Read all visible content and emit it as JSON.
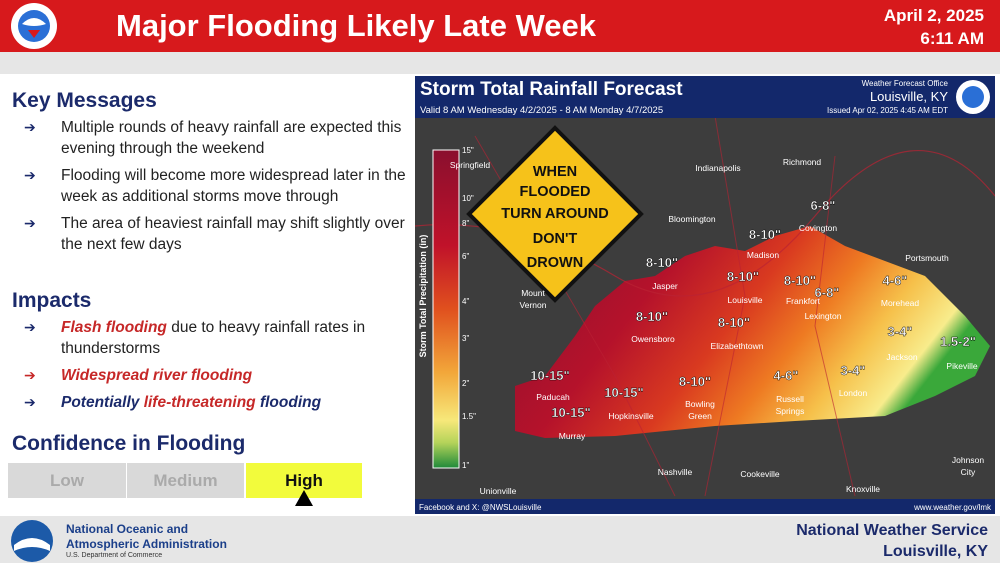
{
  "header": {
    "title": "Major Flooding Likely Late Week",
    "date": "April 2, 2025",
    "time": "6:11 AM"
  },
  "key_messages": {
    "heading": "Key Messages",
    "items": [
      "Multiple rounds of heavy rainfall are expected this evening through the weekend",
      "Flooding will become more widespread later in the week as additional storms move through",
      "The area of heaviest rainfall may shift slightly over the next few days"
    ]
  },
  "impacts": {
    "heading": "Impacts",
    "items": [
      [
        "Flash flooding",
        " due to heavy rainfall rates in thunderstorms"
      ],
      [
        "Widespread river flooding"
      ],
      [
        "Potentially ",
        "life-threatening",
        " flooding"
      ]
    ]
  },
  "confidence": {
    "heading": "Confidence in Flooding",
    "levels": [
      "Low",
      "Medium",
      "High"
    ],
    "selected": "High"
  },
  "map": {
    "title": "Storm Total Rainfall Forecast",
    "valid": "Valid 8 AM Wednesday 4/2/2025 - 8 AM Monday 4/7/2025",
    "office": "Weather Forecast Office",
    "office_name": "Louisville, KY",
    "issued": "Issued Apr 02, 2025 4:45 AM EDT",
    "legend_title": "Storm Total Precipitation (in)",
    "legend_ticks": [
      "15\"",
      "10\"",
      "8\"",
      "6\"",
      "4\"",
      "3\"",
      "2\"",
      "1.5\"",
      "1\""
    ],
    "sign": [
      "WHEN",
      "FLOODED",
      "TURN AROUND",
      "DON'T",
      "DROWN"
    ],
    "cities": [
      "Springfield",
      "Indianapolis",
      "Richmond",
      "Bloomington",
      "Covington",
      "Madison",
      "Jasper",
      "Louisville",
      "Frankfort",
      "Portsmouth",
      "Morehead",
      "Lexington",
      "Mount",
      "Vernon",
      "Owensboro",
      "Elizabethtown",
      "Jackson",
      "Pikeville",
      "Paducah",
      "Hopkinsville",
      "Bowling",
      "Green",
      "Russell",
      "Springs",
      "London",
      "Murray",
      "Nashville",
      "Cookeville",
      "Knoxville",
      "Johnson",
      "City",
      "Unionville"
    ],
    "amounts": [
      "6-8\"",
      "8-10\"",
      "8-10\"",
      "8-10\"",
      "8-10\"",
      "6-8\"",
      "4-6\"",
      "8-10\"",
      "8-10\"",
      "3-4\"",
      "10-15\"",
      "10-15\"",
      "8-10\"",
      "4-6\"",
      "3-4\"",
      "1.5-2\"",
      "10-15\""
    ],
    "footer_left": "Facebook and X: @NWSLouisville",
    "footer_right": "www.weather.gov/lmk"
  },
  "footer": {
    "noaa": [
      "National Oceanic and",
      "Atmospheric Administration"
    ],
    "dept": "U.S. Department of Commerce",
    "nws": [
      "National Weather Service",
      "Louisville, KY"
    ]
  }
}
